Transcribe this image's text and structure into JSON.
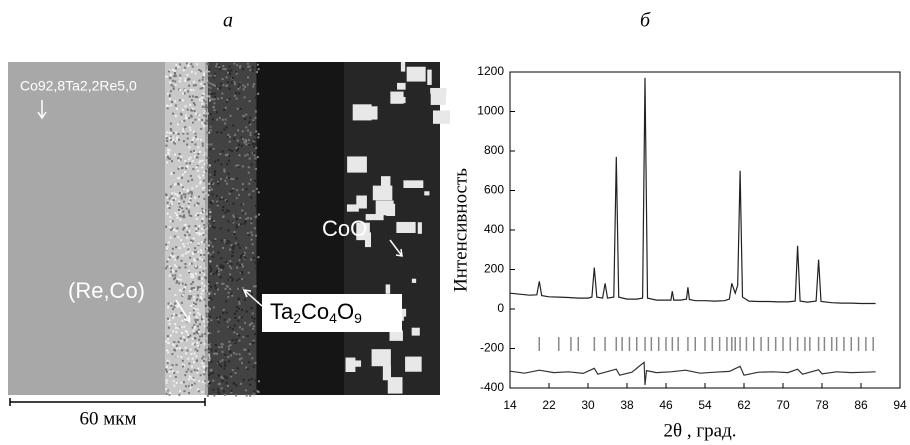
{
  "panel_a": {
    "title": "а",
    "sample_label": "Co92,8Ta2,2Re5,0",
    "oxide_label": "CoO",
    "phase_label": "(Re,Co)",
    "formula": [
      "Ta",
      "2",
      "Co",
      "4",
      "O",
      "9"
    ],
    "scale_bar": "60 мкм"
  },
  "chart_data": {
    "type": "line",
    "title": "б",
    "x_label": "2θ , град.",
    "y_label": "Интенсивность",
    "xlim": [
      14,
      94
    ],
    "xticks": [
      14,
      22,
      30,
      38,
      46,
      54,
      62,
      70,
      78,
      86,
      94
    ],
    "ylim": [
      -400,
      1200
    ],
    "yticks": [
      -400,
      -200,
      0,
      200,
      400,
      600,
      800,
      1000,
      1200
    ],
    "series": [
      {
        "color": "#222222",
        "x": [
          14,
          16,
          18,
          19.5,
          20,
          20.5,
          22,
          24,
          26,
          28,
          30,
          30.8,
          31.3,
          31.8,
          33,
          33.5,
          34,
          35.3,
          35.8,
          36.3,
          38,
          40,
          41.2,
          41.7,
          42.2,
          44,
          46,
          47,
          47.3,
          47.6,
          49,
          50.2,
          50.5,
          50.8,
          52,
          54,
          56,
          58,
          59,
          59.5,
          60.2,
          60.7,
          61.2,
          61.7,
          63,
          65,
          67,
          69,
          71,
          72.5,
          73,
          73.5,
          75,
          76.8,
          77.3,
          77.8,
          80,
          82,
          84,
          86,
          88,
          89
        ],
        "values": [
          80,
          75,
          70,
          72,
          140,
          68,
          62,
          60,
          58,
          55,
          55,
          60,
          210,
          60,
          55,
          130,
          55,
          60,
          770,
          60,
          50,
          50,
          55,
          1170,
          55,
          45,
          45,
          45,
          90,
          45,
          45,
          50,
          110,
          48,
          42,
          42,
          40,
          42,
          50,
          130,
          80,
          120,
          700,
          60,
          40,
          38,
          38,
          36,
          36,
          40,
          320,
          40,
          35,
          40,
          250,
          38,
          32,
          30,
          30,
          28,
          28,
          28
        ]
      },
      {
        "color": "#333333",
        "x": [
          14,
          17,
          20,
          23,
          26,
          29,
          31.3,
          32,
          35.8,
          36.5,
          39,
          41.5,
          41.7,
          42,
          44,
          47,
          50,
          53,
          56,
          59,
          61.2,
          62,
          65,
          68,
          71,
          73,
          74,
          77.3,
          78,
          81,
          84,
          87,
          89
        ],
        "values": [
          -315,
          -325,
          -310,
          -322,
          -318,
          -326,
          -300,
          -330,
          -305,
          -335,
          -320,
          -270,
          -385,
          -312,
          -322,
          -318,
          -310,
          -325,
          -320,
          -316,
          -290,
          -335,
          -320,
          -318,
          -322,
          -305,
          -330,
          -308,
          -328,
          -318,
          -322,
          -320,
          -318
        ]
      }
    ],
    "bragg_positions": [
      20,
      24,
      26.5,
      28,
      31.3,
      33.5,
      35.8,
      37,
      38.5,
      40,
      41.7,
      43,
      44.5,
      46,
      47.3,
      48.5,
      50.5,
      52,
      54,
      55.5,
      57,
      58.5,
      59.5,
      60.2,
      61.2,
      62.5,
      64,
      65.5,
      67,
      68.5,
      70,
      71.5,
      73,
      74.5,
      75.5,
      77.3,
      78.5,
      80,
      81,
      82.5,
      84,
      85.5,
      87,
      88.5
    ],
    "bragg_color": "#888888"
  }
}
